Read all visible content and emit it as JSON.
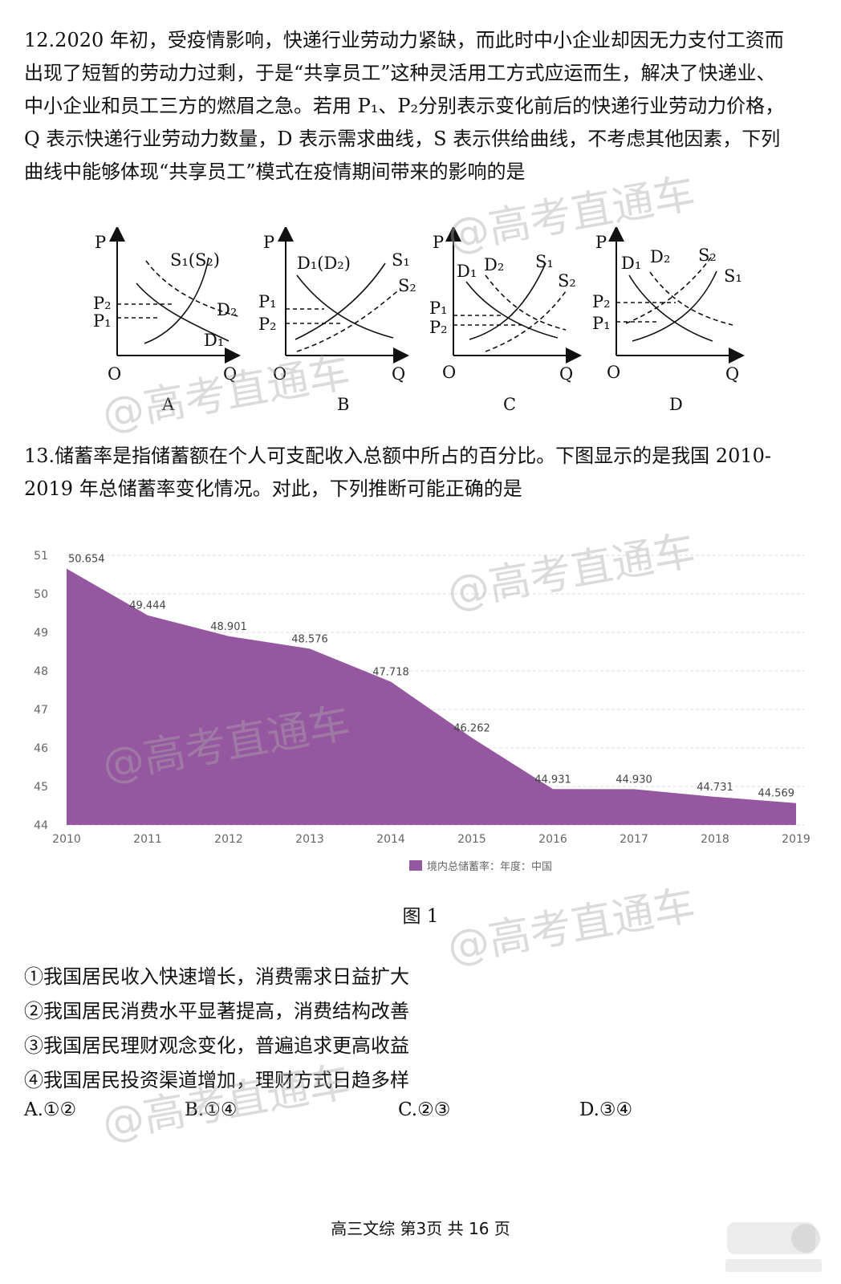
{
  "q12": {
    "lines": [
      "12.2020 年初，受疫情影响，快递行业劳动力紧缺，而此时中小企业却因无力支付工资而",
      "出现了短暂的劳动力过剩，于是“共享员工”这种灵活用工方式应运而生，解决了快递业、",
      "中小企业和员工三方的燃眉之急。若用 P₁、P₂分别表示变化前后的快递行业劳动力价格，",
      "Q 表示快递行业劳动力数量，D 表示需求曲线，S 表示供给曲线，不考虑其他因素，下列",
      "曲线中能够体现“共享员工”模式在疫情期间带来的影响的是"
    ],
    "diagrams": [
      {
        "letter": "A",
        "curve_labels": [
          "S₁(S₂)",
          "D₂",
          "D₁"
        ],
        "price_labels": [
          "P₂",
          "P₁"
        ]
      },
      {
        "letter": "B",
        "curve_labels": [
          "D₁(D₂)",
          "S₁",
          "S₂"
        ],
        "price_labels": [
          "P₁",
          "P₂"
        ]
      },
      {
        "letter": "C",
        "curve_labels": [
          "D₁",
          "D₂",
          "S₁",
          "S₂"
        ],
        "price_labels": [
          "P₁",
          "P₂"
        ]
      },
      {
        "letter": "D",
        "curve_labels": [
          "D₁",
          "D₂",
          "S₂",
          "S₁"
        ],
        "price_labels": [
          "P₂",
          "P₁"
        ]
      }
    ],
    "axis": {
      "p": "P",
      "q": "Q",
      "o": "O"
    }
  },
  "q13": {
    "lines": [
      "13.储蓄率是指储蓄额在个人可支配收入总额中所占的百分比。下图显示的是我国 2010-",
      "2019 年总储蓄率变化情况。对此，下列推断可能正确的是"
    ],
    "caption": "图 1",
    "options": [
      "①我国居民收入快速增长，消费需求日益扩大",
      "②我国居民消费水平显著提高，消费结构改善",
      "③我国居民理财观念变化，普遍追求更高收益",
      "④我国居民投资渠道增加，理财方式日趋多样"
    ],
    "answers": [
      "A.①②",
      "B.①④",
      "C.②③",
      "D.③④"
    ]
  },
  "chart_data": {
    "type": "area",
    "x": [
      "2010",
      "2011",
      "2012",
      "2013",
      "2014",
      "2015",
      "2016",
      "2017",
      "2018",
      "2019"
    ],
    "series": [
      {
        "name": "境内总储蓄率：年度：中国",
        "values": [
          50.654,
          49.444,
          48.901,
          48.576,
          47.718,
          46.262,
          44.931,
          44.93,
          44.731,
          44.569
        ],
        "labels": [
          "50.654",
          "49.444",
          "48.901",
          "48.576",
          "47.718",
          "46.262",
          "44.931",
          "44.930",
          "44.731",
          "44.569"
        ]
      }
    ],
    "yticks": [
      "44",
      "45",
      "46",
      "47",
      "48",
      "49",
      "50",
      "51"
    ],
    "ylim": [
      44,
      51
    ],
    "grid": true,
    "legend_position": "bottom-center",
    "color": "#95579f"
  },
  "footer": "高三文综 第3页 共 16 页",
  "watermark": "@高考直通车"
}
